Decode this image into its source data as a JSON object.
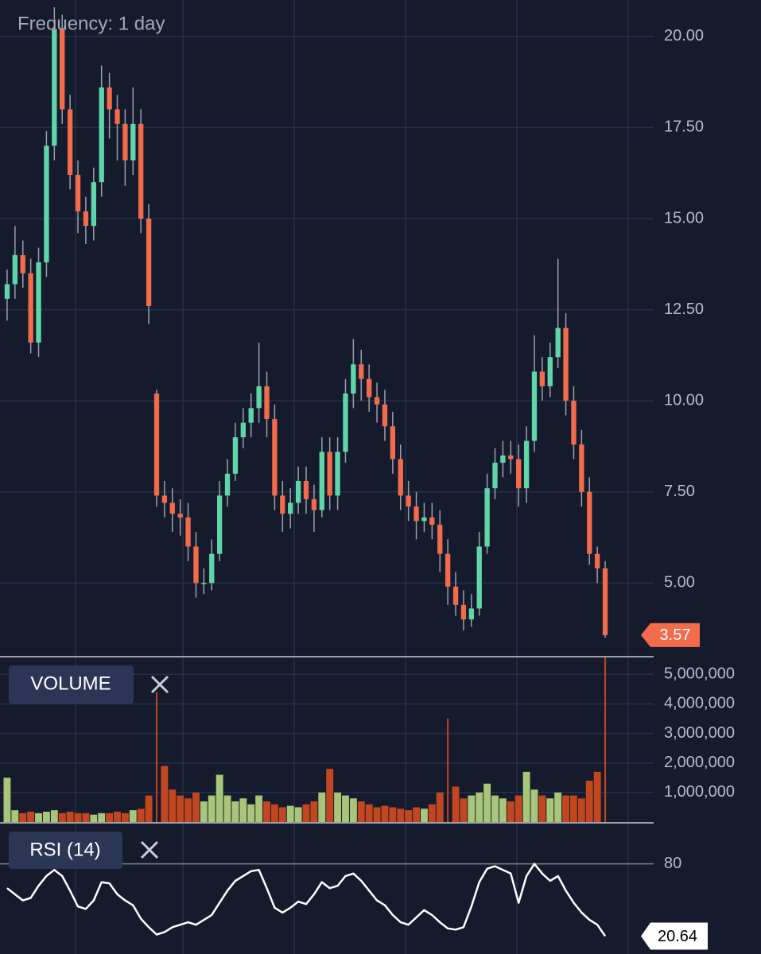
{
  "chart_data": [
    {
      "type": "candlestick",
      "title": "Frequency: 1 day",
      "open": [
        12.8,
        13.2,
        14.0,
        13.5,
        11.6,
        13.8,
        17.0,
        20.2,
        18.0,
        16.2,
        15.2,
        14.8,
        16.0,
        18.6,
        18.0,
        17.6,
        16.6,
        17.6,
        15.0,
        10.2,
        7.4,
        7.2,
        6.9,
        6.8,
        6.0,
        5.0,
        5.0,
        5.8,
        7.4,
        8.0,
        9.0,
        9.4,
        9.8,
        10.4,
        9.5,
        7.4,
        6.9,
        7.2,
        7.8,
        7.3,
        7.0,
        8.6,
        7.4,
        8.6,
        10.2,
        11.0,
        10.6,
        10.1,
        9.9,
        9.3,
        8.4,
        7.4,
        7.1,
        6.7,
        6.8,
        6.6,
        5.8,
        4.9,
        4.4,
        4.0,
        4.3,
        6.0,
        7.6,
        8.3,
        8.5,
        8.4,
        7.6,
        8.9,
        10.8,
        10.4,
        11.2,
        12.0,
        10.0,
        8.8,
        7.5,
        5.8,
        5.4
      ],
      "high": [
        13.6,
        14.8,
        14.4,
        13.9,
        14.2,
        17.4,
        20.8,
        20.6,
        18.4,
        16.6,
        15.6,
        16.4,
        19.2,
        19.0,
        18.4,
        18.0,
        18.6,
        18.0,
        15.4,
        10.3,
        7.8,
        7.6,
        7.3,
        7.2,
        6.4,
        5.4,
        6.2,
        7.8,
        8.4,
        9.4,
        9.8,
        10.2,
        11.6,
        10.8,
        9.9,
        7.8,
        7.6,
        8.2,
        8.2,
        7.7,
        9.0,
        9.0,
        9.0,
        10.6,
        11.7,
        11.4,
        11.0,
        10.5,
        10.3,
        9.7,
        8.8,
        7.8,
        7.5,
        7.2,
        7.2,
        7.0,
        6.2,
        5.3,
        4.8,
        4.7,
        6.4,
        8.0,
        8.7,
        8.9,
        8.9,
        8.8,
        9.3,
        11.8,
        11.2,
        11.6,
        13.9,
        12.4,
        10.4,
        9.2,
        7.9,
        6.0,
        5.6
      ],
      "low": [
        12.2,
        12.8,
        13.1,
        11.3,
        11.2,
        13.4,
        16.6,
        17.6,
        15.8,
        14.6,
        14.3,
        14.4,
        15.6,
        17.2,
        16.6,
        15.9,
        16.2,
        14.6,
        12.1,
        7.1,
        6.8,
        6.4,
        6.3,
        5.6,
        4.6,
        4.7,
        4.8,
        5.6,
        7.1,
        7.8,
        8.7,
        9.0,
        9.4,
        9.0,
        7.0,
        6.4,
        6.5,
        6.9,
        6.9,
        6.4,
        6.8,
        7.0,
        7.0,
        8.3,
        9.8,
        10.0,
        9.7,
        9.4,
        8.9,
        8.0,
        7.0,
        6.7,
        6.2,
        6.4,
        6.2,
        5.3,
        4.4,
        4.1,
        3.7,
        3.8,
        4.1,
        5.8,
        7.3,
        7.9,
        8.0,
        7.1,
        7.2,
        8.6,
        10.0,
        10.1,
        10.9,
        9.6,
        8.4,
        7.1,
        5.5,
        5.0,
        3.5
      ],
      "close": [
        13.2,
        14.0,
        13.5,
        11.6,
        13.8,
        17.0,
        20.2,
        18.0,
        16.2,
        15.2,
        14.8,
        16.0,
        18.6,
        18.0,
        17.6,
        16.6,
        17.6,
        15.0,
        12.6,
        7.4,
        7.2,
        6.9,
        6.8,
        6.0,
        5.0,
        5.0,
        5.8,
        7.4,
        8.0,
        9.0,
        9.4,
        9.8,
        10.4,
        9.5,
        7.4,
        6.9,
        7.2,
        7.8,
        7.3,
        7.0,
        8.6,
        7.4,
        8.6,
        10.2,
        11.0,
        10.6,
        10.1,
        9.9,
        9.3,
        8.4,
        7.4,
        7.1,
        6.7,
        6.8,
        6.6,
        5.8,
        4.9,
        4.4,
        4.0,
        4.3,
        6.0,
        7.6,
        8.3,
        8.5,
        8.4,
        7.6,
        8.9,
        10.8,
        10.4,
        11.2,
        12.0,
        10.0,
        8.8,
        7.5,
        5.8,
        5.4,
        3.57
      ],
      "up_color": "#5fd6a9",
      "down_color": "#f26b4a",
      "wick_color": "#9aa0ab",
      "ylim": [
        3.0,
        21.0
      ],
      "yticks": [
        {
          "value": 5,
          "label": "5.00"
        },
        {
          "value": 7.5,
          "label": "7.50"
        },
        {
          "value": 10,
          "label": "10.00"
        },
        {
          "value": 12.5,
          "label": "12.50"
        },
        {
          "value": 15,
          "label": "15.00"
        },
        {
          "value": 17.5,
          "label": "17.50"
        },
        {
          "value": 20,
          "label": "20.00"
        }
      ],
      "grid": true
    },
    {
      "type": "bar",
      "title": "VOLUME",
      "values": [
        1500000,
        400000,
        300000,
        350000,
        300000,
        350000,
        400000,
        300000,
        350000,
        300000,
        300000,
        250000,
        300000,
        300000,
        350000,
        300000,
        400000,
        450000,
        900000,
        4400000,
        1900000,
        1100000,
        900000,
        800000,
        1000000,
        700000,
        900000,
        1600000,
        900000,
        700000,
        800000,
        600000,
        900000,
        700000,
        600000,
        500000,
        550000,
        500000,
        600000,
        700000,
        1000000,
        1800000,
        1000000,
        900000,
        800000,
        700000,
        600000,
        500000,
        550000,
        500000,
        450000,
        400000,
        500000,
        450000,
        600000,
        1000000,
        3500000,
        1200000,
        800000,
        900000,
        1000000,
        1300000,
        900000,
        800000,
        700000,
        900000,
        1700000,
        1100000,
        900000,
        800000,
        1000000,
        900000,
        900000,
        800000,
        1400000,
        1700000,
        5600000
      ],
      "up_color": "#a8c67a",
      "down_color": "#c2461f",
      "ylim": [
        0,
        5600000
      ],
      "yticks": [
        {
          "value": 1000000,
          "label": "1,000,000"
        },
        {
          "value": 2000000,
          "label": "2,000,000"
        },
        {
          "value": 3000000,
          "label": "3,000,000"
        },
        {
          "value": 4000000,
          "label": "4,000,000"
        },
        {
          "value": 5000000,
          "label": "5,000,000"
        }
      ],
      "grid": true
    },
    {
      "type": "line",
      "title": "RSI (14)",
      "values": [
        60,
        55,
        50,
        52,
        62,
        70,
        75,
        70,
        58,
        45,
        43,
        50,
        65,
        64,
        55,
        50,
        46,
        35,
        28,
        22,
        24,
        28,
        30,
        32,
        30,
        34,
        38,
        48,
        58,
        66,
        70,
        74,
        75,
        60,
        44,
        40,
        44,
        49,
        47,
        55,
        65,
        60,
        62,
        70,
        72,
        66,
        58,
        50,
        46,
        38,
        32,
        30,
        36,
        42,
        38,
        32,
        27,
        26,
        28,
        45,
        65,
        76,
        78,
        75,
        72,
        48,
        70,
        80,
        72,
        66,
        70,
        58,
        48,
        40,
        34,
        30,
        20.64
      ],
      "color": "#ffffff",
      "ylim": [
        6,
        113
      ],
      "yticks": [
        80
      ],
      "grid": true
    }
  ]
}
